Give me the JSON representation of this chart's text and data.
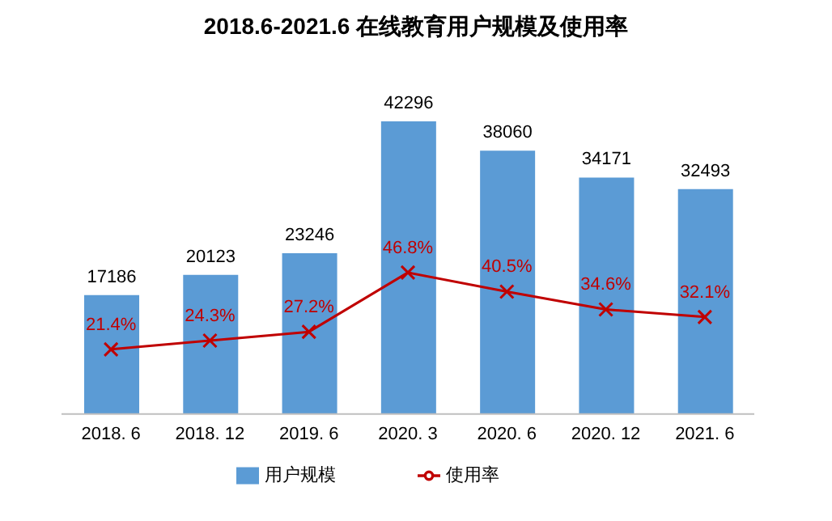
{
  "chart_data": {
    "type": "bar",
    "title": "2018.6-2021.6 在线教育用户规模及使用率",
    "categories": [
      "2018. 6",
      "2018. 12",
      "2019. 6",
      "2020. 3",
      "2020. 6",
      "2020. 12",
      "2021. 6"
    ],
    "series": [
      {
        "name": "用户规模",
        "color": "#5b9bd5",
        "values": [
          17186,
          20123,
          23246,
          42296,
          38060,
          34171,
          32493
        ]
      },
      {
        "name": "使用率",
        "type": "line",
        "axis": "y2",
        "color": "#c00000",
        "value_labels": [
          "21.4%",
          "24.3%",
          "27.2%",
          "46.8%",
          "40.5%",
          "34.6%",
          "32.1%"
        ],
        "values": [
          21.4,
          24.3,
          27.2,
          46.8,
          40.5,
          34.6,
          32.1
        ]
      }
    ],
    "data_labels": true,
    "legend": "bottom",
    "marker": "cross",
    "grid": false,
    "tick_labels": "x"
  }
}
